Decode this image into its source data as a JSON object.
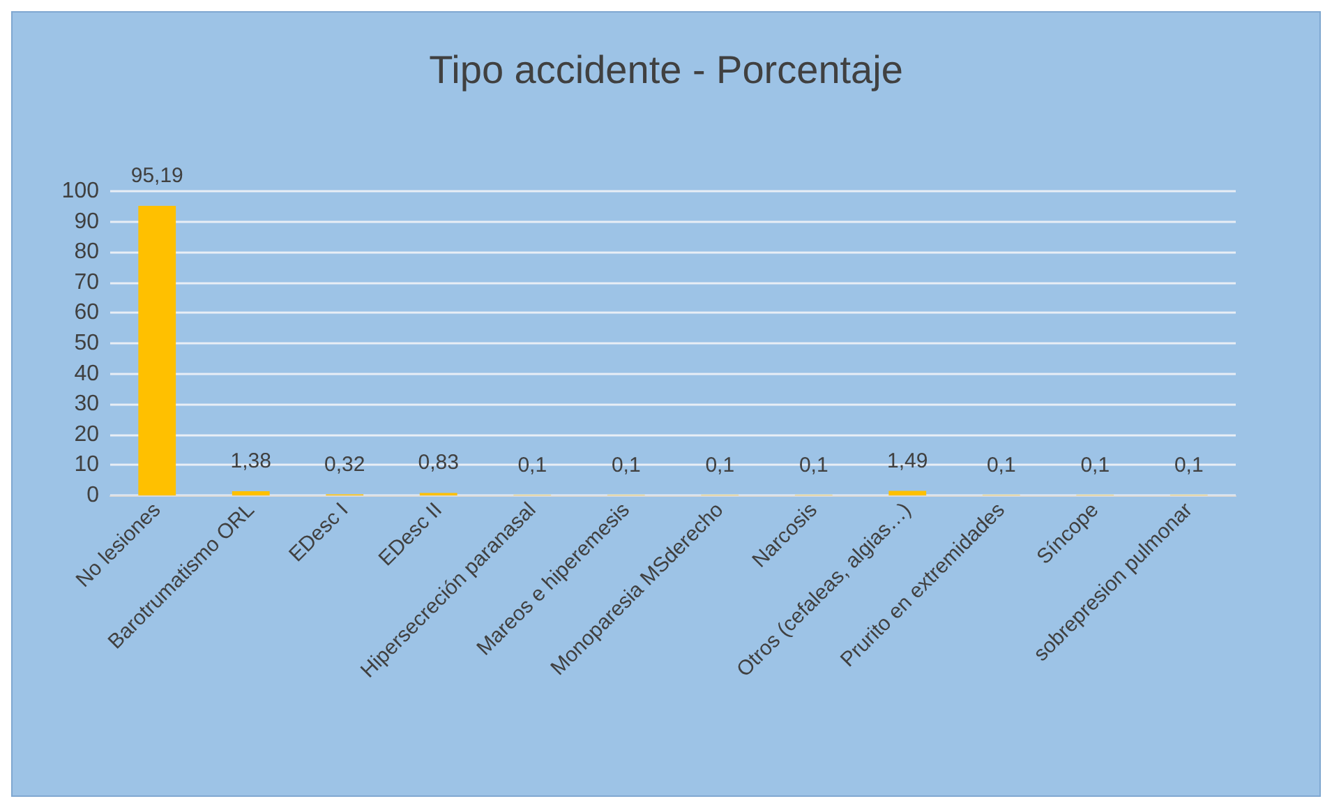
{
  "chart_data": {
    "type": "bar",
    "title": "Tipo accidente - Porcentaje",
    "categories": [
      "No lesiones",
      "Barotrumatismo ORL",
      "EDesc I",
      "EDesc II",
      "Hipersecreción paranasal",
      "Mareos e hiperemesis",
      "Monoparesia MSderecho",
      "Narcosis",
      "Otros (cefaleas, algias…)",
      "Prurito en extremidades",
      "Síncope",
      "sobrepresion pulmonar"
    ],
    "values": [
      95.19,
      1.38,
      0.32,
      0.83,
      0.1,
      0.1,
      0.1,
      0.1,
      1.49,
      0.1,
      0.1,
      0.1
    ],
    "value_labels": [
      "95,19",
      "1,38",
      "0,32",
      "0,83",
      "0,1",
      "0,1",
      "0,1",
      "0,1",
      "1,49",
      "0,1",
      "0,1",
      "0,1"
    ],
    "color": "#ffc000",
    "ylim": [
      0,
      100
    ],
    "yticks": [
      0,
      10,
      20,
      30,
      40,
      50,
      60,
      70,
      80,
      90,
      100
    ],
    "grid": true
  }
}
